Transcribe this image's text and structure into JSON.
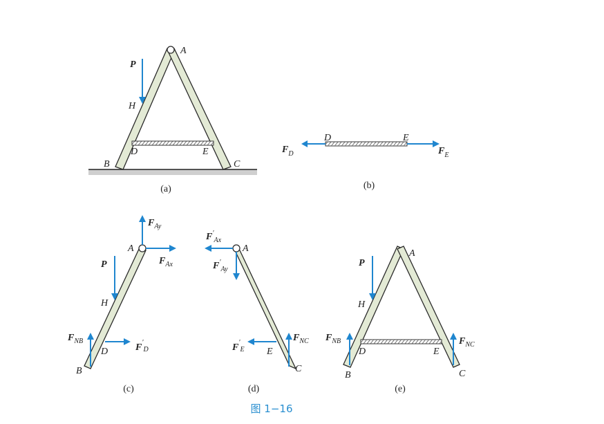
{
  "figure_title": "图 1−16",
  "captions": {
    "a": "(a)",
    "b": "(b)",
    "c": "(c)",
    "d": "(d)",
    "e": "(e)"
  },
  "points": {
    "A": "A",
    "B": "B",
    "C": "C",
    "D": "D",
    "E": "E",
    "H": "H"
  },
  "forces": {
    "P": "P",
    "FD": {
      "main": "F",
      "sub": "D"
    },
    "FE": {
      "main": "F",
      "sub": "E"
    },
    "FAy": {
      "main": "F",
      "sub": "Ay"
    },
    "FAx": {
      "main": "F",
      "sub": "Ax"
    },
    "FAx_prime": {
      "main": "F",
      "prime": "′",
      "sub": "Ax"
    },
    "FAy_prime": {
      "main": "F",
      "prime": "′",
      "sub": "Ay"
    },
    "FNB": {
      "main": "F",
      "sub": "NB"
    },
    "FNC": {
      "main": "F",
      "sub": "NC"
    },
    "FD_prime": {
      "main": "F",
      "prime": "′",
      "sub": "D"
    },
    "FE_prime": {
      "main": "F",
      "prime": "′",
      "sub": "E"
    }
  },
  "colors": {
    "arrow": "#1f86cf",
    "title": "#2a8fd0",
    "rod_fill": "#e3ead5"
  }
}
